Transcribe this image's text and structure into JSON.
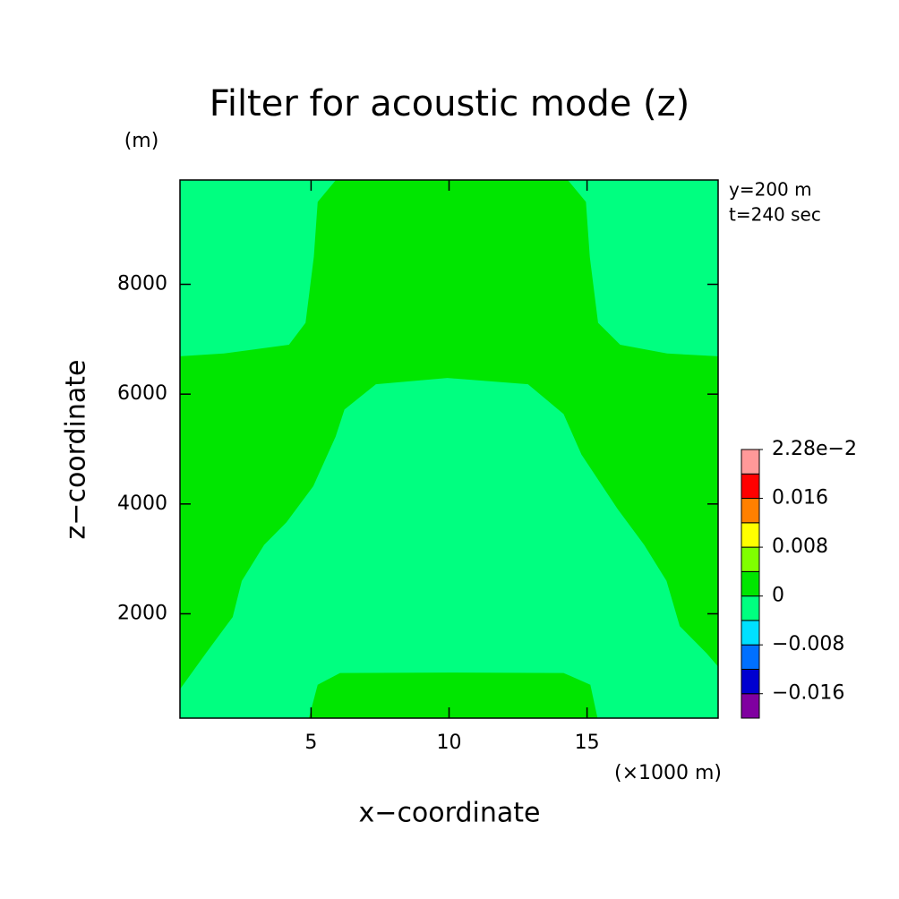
{
  "chart_data": {
    "type": "contour",
    "title": "Filter for acoustic mode (z)",
    "y_unit": "(m)",
    "x_unit": "(×1000 m)",
    "x_label": "x−coordinate",
    "y_label": "z−coordinate",
    "annotations": [
      "y=200 m",
      "t=240 sec"
    ],
    "xlim": [
      0.25,
      19.75
    ],
    "xticks": [
      5,
      10,
      15
    ],
    "ylim": [
      100,
      9900
    ],
    "yticks": [
      2000,
      4000,
      6000,
      8000
    ],
    "background_color": "#00ff80",
    "regions": [
      {
        "color": "#00e600",
        "x": [
          0.25,
          1.19,
          2.16,
          2.49,
          3.3,
          4.11,
          5.08,
          5.89,
          6.21,
          7.35,
          9.94,
          12.86,
          14.15,
          14.8,
          16.1,
          17.07,
          17.88,
          18.36,
          19.33,
          19.75,
          19.75,
          17.9,
          16.2,
          15.4,
          15.1,
          14.96,
          14.3,
          5.9,
          5.24,
          5.1,
          4.8,
          4.2,
          1.84,
          0.25
        ],
        "z": [
          626,
          1283,
          1941,
          2598,
          3255,
          3666,
          4324,
          5227,
          5720,
          6180,
          6295,
          6180,
          5638,
          4899,
          3913,
          3255,
          2598,
          1776,
          1283,
          1037,
          6690,
          6740,
          6900,
          7300,
          8500,
          9500,
          9900,
          9900,
          9500,
          8500,
          7300,
          6900,
          6740,
          6690
        ]
      },
      {
        "color": "#00e600",
        "x": [
          4.92,
          5.24,
          6.05,
          10,
          14.15,
          15.12,
          15.38
        ],
        "z": [
          100,
          708,
          922,
          930,
          922,
          708,
          100
        ]
      }
    ],
    "colorbar": {
      "levels": [
        -0.02,
        -0.016,
        -0.012,
        -0.008,
        -0.004,
        0,
        0.004,
        0.008,
        0.012,
        0.016,
        0.02,
        0.0228
      ],
      "colors": [
        "#8000a0",
        "#0000d0",
        "#0070ff",
        "#00e0ff",
        "#00ff80",
        "#00e600",
        "#80ff00",
        "#ffff00",
        "#ff8000",
        "#ff0000",
        "#ff9999"
      ],
      "ticks": [
        {
          "value": 0.0228,
          "label": "2.28e−2"
        },
        0.016,
        0.008,
        0,
        {
          "value": -0.008,
          "label": "−0.008"
        },
        {
          "value": -0.016,
          "label": "−0.016"
        }
      ]
    }
  }
}
